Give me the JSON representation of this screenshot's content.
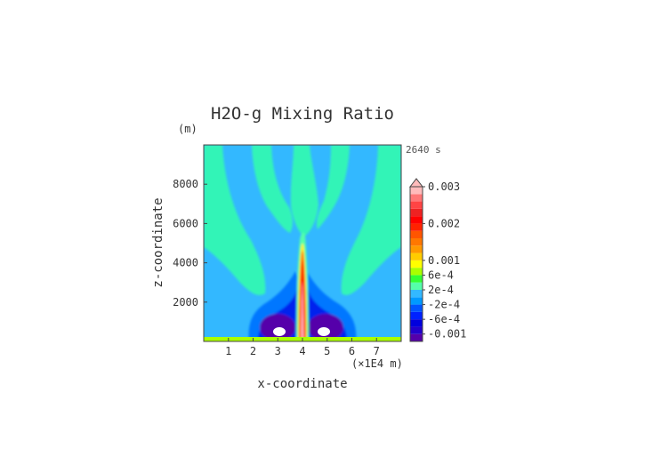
{
  "chart_data": {
    "type": "heatmap",
    "title": "H2O-g Mixing Ratio",
    "xlabel": "x-coordinate",
    "ylabel": "z-coordinate",
    "x_unit": "(×1E4 m)",
    "y_unit": "(m)",
    "time_label": "2640 s",
    "xlim": [
      0,
      8
    ],
    "ylim": [
      0,
      10000
    ],
    "x_ticks": [
      1,
      2,
      3,
      4,
      5,
      6,
      7
    ],
    "y_ticks": [
      2000,
      4000,
      6000,
      8000
    ],
    "grid": false,
    "colorbar": {
      "placement": "right",
      "tick_labels": [
        "0.003",
        "0.002",
        "0.001",
        "6e-4",
        "2e-4",
        "-2e-4",
        "-6e-4",
        "-0.001"
      ],
      "tick_values": [
        0.003,
        0.002,
        0.001,
        0.0006,
        0.0002,
        -0.0002,
        -0.0006,
        -0.001
      ],
      "levels": [
        -0.0012,
        -0.001,
        -0.0008,
        -0.0006,
        -0.0004,
        -0.0002,
        0,
        0.0002,
        0.0004,
        0.0006,
        0.0008,
        0.001,
        0.0012,
        0.0014,
        0.0016,
        0.0018,
        0.002,
        0.0022,
        0.0024,
        0.0026,
        0.0028,
        0.003
      ],
      "colors": [
        "#5500aa",
        "#2200cc",
        "#0000dd",
        "#0022ff",
        "#0055ff",
        "#0099ff",
        "#33b8ff",
        "#55ffaa",
        "#33ff33",
        "#aaff00",
        "#ffff00",
        "#ffcc00",
        "#ff9900",
        "#ff7700",
        "#ff5500",
        "#ff2200",
        "#ff0000",
        "#ee2222",
        "#ff4444",
        "#ff7777",
        "#ffbbbb"
      ],
      "extend_top": true
    },
    "field_features": [
      {
        "name": "central plume",
        "x": 4.0,
        "z_top": 5300,
        "max": 0.003
      },
      {
        "name": "left minimum",
        "x": 3.3,
        "z": 500,
        "min": -0.0012
      },
      {
        "name": "right minimum",
        "x": 5.0,
        "z": 500,
        "min": -0.0012
      },
      {
        "name": "background",
        "value": -0.0002
      },
      {
        "name": "surface layer",
        "z": 100,
        "value": 0.0004
      }
    ]
  }
}
